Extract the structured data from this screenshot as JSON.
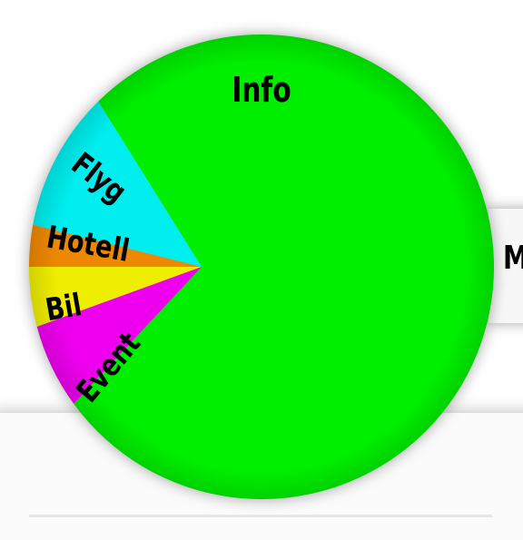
{
  "wheel": {
    "segments": [
      {
        "label": "Info",
        "color": "#00ee00"
      },
      {
        "label": "Flyg",
        "color": "#00eeee"
      },
      {
        "label": "Hotell",
        "color": "#ee8800"
      },
      {
        "label": "Bil",
        "color": "#eeee00"
      },
      {
        "label": "Event",
        "color": "#ee00ee"
      }
    ]
  },
  "side_panel": {
    "label": "M"
  }
}
